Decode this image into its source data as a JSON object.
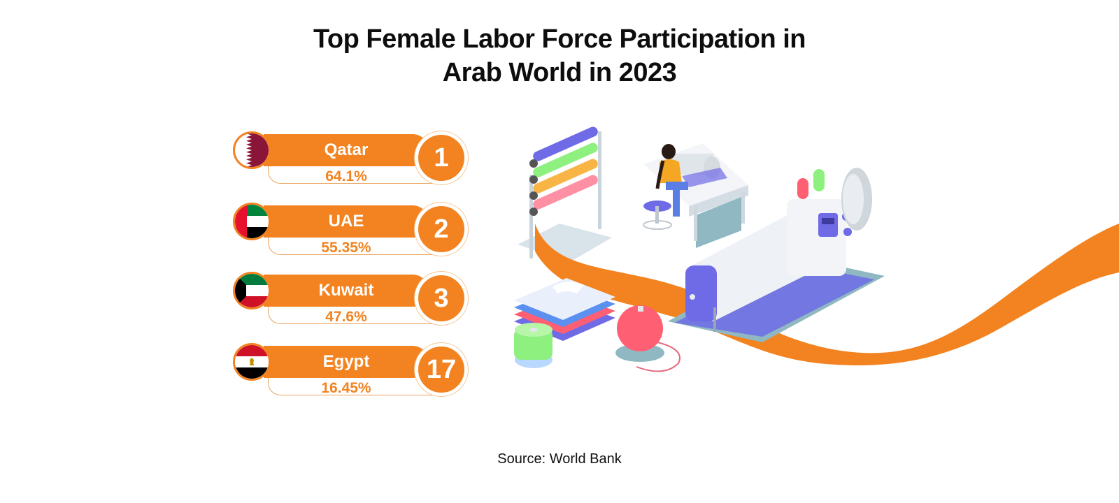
{
  "chart_data": {
    "type": "table",
    "title": "Top Female Labor Force Participation in Arab World in 2023",
    "title_lines": [
      "Top Female Labor Force Participation in",
      "Arab World in 2023"
    ],
    "columns": [
      "rank",
      "country",
      "participation"
    ],
    "rows": [
      {
        "rank": "1",
        "country": "Qatar",
        "value_label": "64.1%",
        "value": 64.1
      },
      {
        "rank": "2",
        "country": "UAE",
        "value_label": "55.35%",
        "value": 55.35
      },
      {
        "rank": "3",
        "country": "Kuwait",
        "value_label": "47.6%",
        "value": 47.6
      },
      {
        "rank": "17",
        "country": "Egypt",
        "value_label": "16.45%",
        "value": 16.45
      }
    ],
    "source": "Source: World Bank"
  },
  "colors": {
    "accent": "#f28320",
    "text": "#0d0d0d"
  },
  "icons": {
    "flags": [
      "qatar-flag-icon",
      "uae-flag-icon",
      "kuwait-flag-icon",
      "egypt-flag-icon"
    ],
    "illustration": "sewing-workshop-illustration"
  }
}
